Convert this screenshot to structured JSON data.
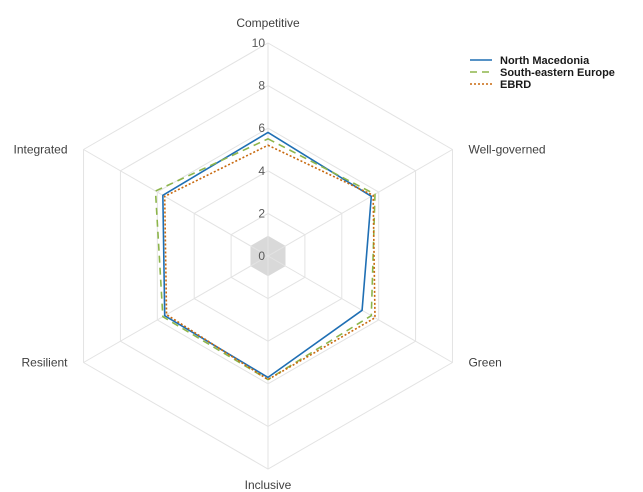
{
  "chart_data": {
    "type": "radar",
    "title": "",
    "axes": [
      "Competitive",
      "Well-governed",
      "Green",
      "Inclusive",
      "Resilient",
      "Integrated"
    ],
    "scale": {
      "min": 0,
      "max": 10,
      "ticks": [
        0,
        2,
        4,
        6,
        8,
        10
      ],
      "grid": true
    },
    "center_fill_color": "#d9d9d9",
    "series": [
      {
        "name": "North Macedonia",
        "color": "#1f6fb4",
        "style": "solid",
        "values": [
          5.8,
          5.6,
          5.1,
          5.7,
          5.6,
          5.7
        ]
      },
      {
        "name": "South-eastern Europe",
        "color": "#8db54b",
        "style": "dashed",
        "values": [
          5.5,
          5.8,
          5.6,
          5.8,
          5.7,
          6.1
        ]
      },
      {
        "name": "EBRD",
        "color": "#c8690e",
        "style": "dotted",
        "values": [
          5.2,
          5.7,
          5.8,
          5.8,
          5.5,
          5.6
        ]
      }
    ],
    "legend_position": "top-right"
  }
}
